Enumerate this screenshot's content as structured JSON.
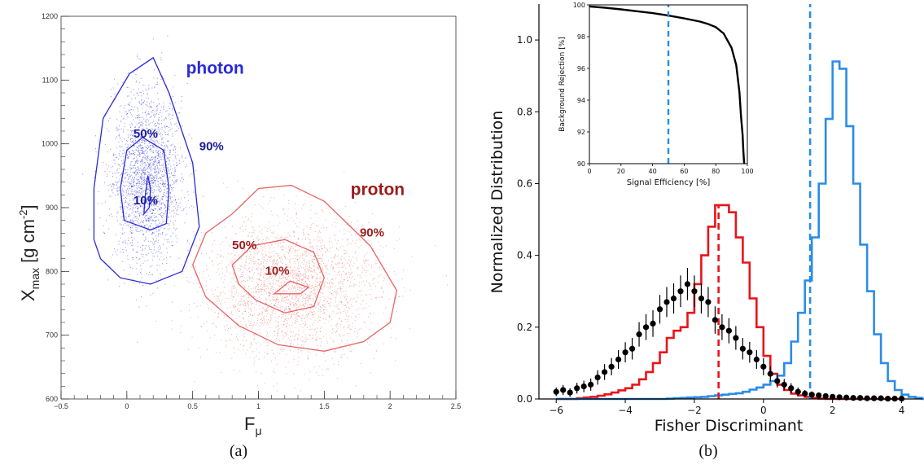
{
  "chart_data": [
    {
      "panel": "(a)",
      "type": "scatter",
      "xlabel_main": "F",
      "xlabel_sub": "μ",
      "ylabel_main": "X",
      "ylabel_sub": "max",
      "ylabel_unit": "[g cm",
      "ylabel_exp": "-2",
      "ylabel_close": "]",
      "xlim": [
        -0.5,
        2.5
      ],
      "ylim": [
        600,
        1200
      ],
      "xticks": [
        -0.5,
        0,
        0.5,
        1,
        1.5,
        2,
        2.5
      ],
      "xtick_labels": [
        "−0.5",
        "0",
        "0.5",
        "1",
        "1.5",
        "2",
        "2.5"
      ],
      "yticks": [
        600,
        700,
        800,
        900,
        1000,
        1100,
        1200
      ],
      "ytick_labels": [
        "600",
        "700",
        "800",
        "900",
        "1000",
        "1100",
        "1200"
      ],
      "series": [
        {
          "name": "photon",
          "color": "#2a2ad8",
          "center": [
            0.15,
            930
          ],
          "contours": [
            {
              "label": "90%",
              "points": [
                [
                  -0.25,
                  850
                ],
                [
                  -0.25,
                  930
                ],
                [
                  -0.18,
                  1040
                ],
                [
                  0.02,
                  1110
                ],
                [
                  0.2,
                  1135
                ],
                [
                  0.32,
                  1080
                ],
                [
                  0.5,
                  970
                ],
                [
                  0.55,
                  870
                ],
                [
                  0.42,
                  800
                ],
                [
                  0.18,
                  780
                ],
                [
                  -0.05,
                  790
                ],
                [
                  -0.2,
                  820
                ]
              ]
            },
            {
              "label": "50%",
              "points": [
                [
                  -0.02,
                  880
                ],
                [
                  -0.05,
                  930
                ],
                [
                  0,
                  990
                ],
                [
                  0.12,
                  1010
                ],
                [
                  0.28,
                  990
                ],
                [
                  0.32,
                  930
                ],
                [
                  0.3,
                  875
                ],
                [
                  0.18,
                  865
                ]
              ]
            },
            {
              "label": "10%",
              "points": [
                [
                  0.13,
                  890
                ],
                [
                  0.14,
                  920
                ],
                [
                  0.16,
                  950
                ],
                [
                  0.18,
                  930
                ],
                [
                  0.17,
                  900
                ]
              ]
            }
          ],
          "label_positions": {
            "name": [
              0.45,
              1110
            ],
            "90%": [
              0.55,
              990
            ],
            "50%": [
              0.05,
              1010
            ],
            "10%": [
              0.05,
              905
            ]
          }
        },
        {
          "name": "proton",
          "color": "#e86464",
          "center": [
            1.25,
            775
          ],
          "contours": [
            {
              "label": "90%",
              "points": [
                [
                  0.5,
                  810
                ],
                [
                  0.6,
                  860
                ],
                [
                  0.8,
                  890
                ],
                [
                  1.0,
                  930
                ],
                [
                  1.25,
                  935
                ],
                [
                  1.5,
                  910
                ],
                [
                  1.7,
                  870
                ],
                [
                  1.85,
                  840
                ],
                [
                  2.05,
                  770
                ],
                [
                  2.0,
                  720
                ],
                [
                  1.8,
                  690
                ],
                [
                  1.5,
                  675
                ],
                [
                  1.15,
                  685
                ],
                [
                  0.85,
                  715
                ],
                [
                  0.6,
                  760
                ]
              ]
            },
            {
              "label": "50%",
              "points": [
                [
                  0.8,
                  810
                ],
                [
                  0.95,
                  840
                ],
                [
                  1.2,
                  850
                ],
                [
                  1.42,
                  830
                ],
                [
                  1.5,
                  790
                ],
                [
                  1.42,
                  745
                ],
                [
                  1.2,
                  735
                ],
                [
                  0.98,
                  755
                ],
                [
                  0.85,
                  780
                ]
              ]
            },
            {
              "label": "10%",
              "points": [
                [
                  1.12,
                  765
                ],
                [
                  1.24,
                  785
                ],
                [
                  1.38,
                  775
                ],
                [
                  1.32,
                  765
                ]
              ]
            }
          ],
          "label_positions": {
            "name": [
              1.7,
              920
            ],
            "90%": [
              1.77,
              855
            ],
            "50%": [
              0.8,
              835
            ],
            "10%": [
              1.05,
              795
            ]
          },
          "label_color": "#9b1c1c"
        }
      ]
    },
    {
      "panel": "(b)",
      "type": "line",
      "xlabel": "Fisher Discriminant",
      "ylabel": "Normalized Distribution",
      "xlim": [
        -6.5,
        4.6
      ],
      "ylim": [
        0,
        1.1
      ],
      "xticks": [
        -6,
        -4,
        -2,
        0,
        2,
        4
      ],
      "xtick_labels": [
        "−6",
        "−4",
        "−2",
        "0",
        "2",
        "4"
      ],
      "yticks": [
        0,
        0.2,
        0.4,
        0.6,
        0.8,
        1.0
      ],
      "ytick_labels": [
        "0.0",
        "0.2",
        "0.4",
        "0.6",
        "0.8",
        "1.0"
      ],
      "hist_bin_edges_start": -6,
      "hist_bin_width": 0.2,
      "series": [
        {
          "name": "red histogram",
          "color": "#e8141a",
          "kind": "step",
          "values": [
            0.0,
            0.0,
            0.0,
            0.002,
            0.004,
            0.006,
            0.009,
            0.013,
            0.018,
            0.024,
            0.03,
            0.04,
            0.055,
            0.075,
            0.1,
            0.13,
            0.17,
            0.19,
            0.2,
            0.24,
            0.32,
            0.4,
            0.48,
            0.54,
            0.54,
            0.52,
            0.45,
            0.38,
            0.28,
            0.2,
            0.12,
            0.07,
            0.04,
            0.025,
            0.015,
            0.01,
            0.006,
            0.003,
            0.001,
            0.0,
            0.0,
            0.0,
            0.0,
            0.0,
            0.0,
            0.0,
            0.0,
            0.0,
            0.0,
            0.0
          ]
        },
        {
          "name": "blue histogram",
          "color": "#2a8ce8",
          "kind": "step",
          "values": [
            0.0,
            0.0,
            0.0,
            0.0,
            0.0,
            0.0,
            0.0,
            0.0,
            0.0,
            0.0,
            0.0,
            0.0,
            0.0,
            0.0,
            0.0,
            0.0,
            0.001,
            0.002,
            0.003,
            0.004,
            0.005,
            0.006,
            0.008,
            0.01,
            0.012,
            0.014,
            0.016,
            0.02,
            0.026,
            0.032,
            0.04,
            0.05,
            0.065,
            0.1,
            0.16,
            0.24,
            0.33,
            0.45,
            0.6,
            0.78,
            0.94,
            0.92,
            0.76,
            0.6,
            0.43,
            0.3,
            0.18,
            0.1,
            0.05,
            0.025,
            0.012,
            0.006,
            0.003,
            0.0
          ]
        },
        {
          "name": "data points",
          "color": "#000000",
          "kind": "errorbar",
          "x": [
            -6.0,
            -5.8,
            -5.6,
            -5.4,
            -5.2,
            -5.0,
            -4.8,
            -4.6,
            -4.4,
            -4.2,
            -4.0,
            -3.8,
            -3.6,
            -3.4,
            -3.2,
            -3.0,
            -2.8,
            -2.6,
            -2.4,
            -2.2,
            -2.0,
            -1.8,
            -1.6,
            -1.4,
            -1.2,
            -1.0,
            -0.8,
            -0.6,
            -0.4,
            -0.2,
            0.0,
            0.2,
            0.4,
            0.6,
            0.8,
            1.0,
            1.2,
            1.4,
            1.6,
            1.8,
            2.0,
            2.2,
            2.4,
            2.6,
            2.8,
            3.0,
            3.2,
            3.4,
            3.6,
            3.8,
            4.0
          ],
          "y": [
            0.02,
            0.025,
            0.018,
            0.03,
            0.035,
            0.04,
            0.06,
            0.075,
            0.09,
            0.11,
            0.13,
            0.14,
            0.18,
            0.2,
            0.21,
            0.25,
            0.27,
            0.28,
            0.3,
            0.32,
            0.3,
            0.28,
            0.27,
            0.22,
            0.2,
            0.19,
            0.17,
            0.14,
            0.13,
            0.11,
            0.09,
            0.07,
            0.05,
            0.04,
            0.03,
            0.02,
            0.015,
            0.012,
            0.01,
            0.008,
            0.006,
            0.005,
            0.004,
            0.003,
            0.003,
            0.002,
            0.002,
            0.002,
            0.001,
            0.001,
            0.001
          ],
          "err": [
            0.012,
            0.014,
            0.012,
            0.015,
            0.016,
            0.017,
            0.02,
            0.022,
            0.024,
            0.026,
            0.028,
            0.03,
            0.034,
            0.036,
            0.037,
            0.04,
            0.042,
            0.042,
            0.044,
            0.045,
            0.044,
            0.042,
            0.042,
            0.038,
            0.036,
            0.035,
            0.033,
            0.03,
            0.029,
            0.026,
            0.024,
            0.021,
            0.018,
            0.016,
            0.014,
            0.012,
            0.01,
            0.009,
            0.008,
            0.007,
            0.006,
            0.005,
            0.005,
            0.004,
            0.004,
            0.003,
            0.003,
            0.003,
            0.002,
            0.002,
            0.002
          ]
        }
      ],
      "vlines": [
        {
          "x": -1.3,
          "ymax": 0.54,
          "color": "#e8141a"
        },
        {
          "x": 1.35,
          "ymax": 1.1,
          "color": "#2a8ce8"
        }
      ],
      "inset": {
        "xlabel": "Signal Efficiency [%]",
        "ylabel": "Background Rejection [%]",
        "xlim": [
          0,
          100
        ],
        "ylim": [
          90,
          100
        ],
        "xticks": [
          0,
          20,
          40,
          60,
          80,
          100
        ],
        "xtick_labels": [
          "0",
          "20",
          "40",
          "60",
          "80",
          "100"
        ],
        "yticks": [
          90,
          92,
          94,
          96,
          98,
          100
        ],
        "ytick_labels": [
          "90",
          "92",
          "94",
          "96",
          "98",
          "100"
        ],
        "curve": {
          "color": "#000000",
          "x": [
            0,
            10,
            20,
            30,
            40,
            50,
            60,
            70,
            75,
            80,
            85,
            90,
            93,
            95,
            96,
            97,
            97.5,
            98
          ],
          "y": [
            99.9,
            99.82,
            99.72,
            99.6,
            99.48,
            99.33,
            99.15,
            98.95,
            98.8,
            98.6,
            98.2,
            97.3,
            96.2,
            94.5,
            93.0,
            91.8,
            90.8,
            90.0
          ]
        },
        "vline": {
          "x": 50,
          "color": "#2a8ce8"
        }
      }
    }
  ],
  "labels": {
    "photon": "photon",
    "proton": "proton",
    "p90": "90%",
    "p50": "50%",
    "p10": "10%",
    "panel_a": "(a)",
    "panel_b": "(b)"
  }
}
